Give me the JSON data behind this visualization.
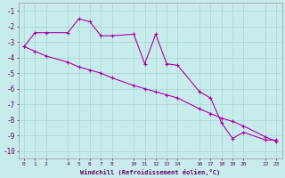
{
  "xlabel": "Windchill (Refroidissement éolien,°C)",
  "background_color": "#c8ecec",
  "grid_color": "#b0d8d8",
  "line_color": "#aa00aa",
  "xlim": [
    -0.5,
    23.5
  ],
  "ylim": [
    -10.5,
    -0.5
  ],
  "xticks": [
    0,
    1,
    2,
    4,
    5,
    6,
    7,
    8,
    10,
    11,
    12,
    13,
    14,
    16,
    17,
    18,
    19,
    20,
    22,
    23
  ],
  "yticks": [
    -1,
    -2,
    -3,
    -4,
    -5,
    -6,
    -7,
    -8,
    -9,
    -10
  ],
  "series1_x": [
    0,
    1,
    2,
    4,
    5,
    6,
    7,
    8,
    10,
    11,
    12,
    13,
    14,
    16,
    17,
    18,
    19,
    20,
    22,
    23
  ],
  "series1_y": [
    -3.3,
    -2.4,
    -2.4,
    -2.4,
    -1.5,
    -1.7,
    -2.6,
    -2.6,
    -2.5,
    -4.4,
    -2.5,
    -4.4,
    -4.5,
    -6.2,
    -6.6,
    -8.2,
    -9.2,
    -8.8,
    -9.3,
    -9.3
  ],
  "series2_x": [
    0,
    1,
    2,
    4,
    5,
    6,
    7,
    8,
    10,
    11,
    12,
    13,
    14,
    16,
    17,
    18,
    19,
    20,
    22,
    23
  ],
  "series2_y": [
    -3.3,
    -3.6,
    -3.9,
    -4.3,
    -4.6,
    -4.8,
    -5.0,
    -5.3,
    -5.8,
    -6.0,
    -6.2,
    -6.4,
    -6.6,
    -7.3,
    -7.6,
    -7.9,
    -8.1,
    -8.4,
    -9.1,
    -9.4
  ]
}
